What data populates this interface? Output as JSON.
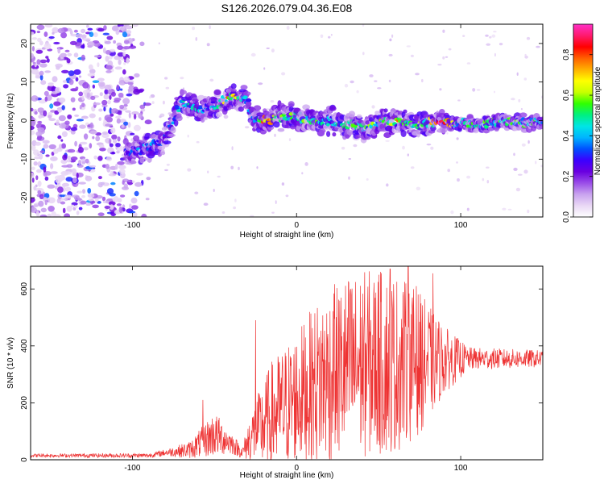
{
  "title": "S126.2026.079.04.36.E08",
  "chart_data": [
    {
      "type": "heatmap",
      "panel": "spectrogram",
      "xlabel": "Height of straight line (km)",
      "ylabel": "Frequency (Hz)",
      "xlim": [
        -162,
        150
      ],
      "ylim": [
        -25,
        25
      ],
      "xticks": [
        -100,
        0,
        100
      ],
      "yticks": [
        -20,
        -10,
        0,
        10,
        20
      ],
      "colorbar": {
        "label": "Normalized spectral amplitude",
        "range": [
          0,
          0.95
        ],
        "ticks": [
          0.0,
          0.2,
          0.4,
          0.6,
          0.8
        ],
        "colors": [
          "#ffffff",
          "#e9d8f5",
          "#c9a3ef",
          "#9a4de8",
          "#6a00e0",
          "#3b00ff",
          "#0050ff",
          "#00b4ff",
          "#00e5e5",
          "#00f080",
          "#30ff00",
          "#c8ff00",
          "#ffff00",
          "#ffb000",
          "#ff6000",
          "#ff0000",
          "#ff1a6e",
          "#ff30c8"
        ]
      },
      "ridge": {
        "description": "dominant frequency track",
        "points": [
          {
            "x": -100,
            "freq": -8,
            "amp": 0.35
          },
          {
            "x": -90,
            "freq": -7,
            "amp": 0.4
          },
          {
            "x": -80,
            "freq": -5,
            "amp": 0.3
          },
          {
            "x": -70,
            "freq": 5,
            "amp": 0.45
          },
          {
            "x": -60,
            "freq": 3,
            "amp": 0.5
          },
          {
            "x": -50,
            "freq": 4,
            "amp": 0.4
          },
          {
            "x": -40,
            "freq": 6,
            "amp": 0.8
          },
          {
            "x": -30,
            "freq": 5,
            "amp": 0.4
          },
          {
            "x": -25,
            "freq": 0,
            "amp": 0.45
          },
          {
            "x": -20,
            "freq": 0,
            "amp": 0.8
          },
          {
            "x": -10,
            "freq": 1,
            "amp": 0.55
          },
          {
            "x": 0,
            "freq": 1,
            "amp": 0.6
          },
          {
            "x": 10,
            "freq": 0,
            "amp": 0.55
          },
          {
            "x": 20,
            "freq": 0,
            "amp": 0.45
          },
          {
            "x": 30,
            "freq": -1,
            "amp": 0.5
          },
          {
            "x": 40,
            "freq": -2,
            "amp": 0.55
          },
          {
            "x": 50,
            "freq": -1,
            "amp": 0.6
          },
          {
            "x": 60,
            "freq": 0,
            "amp": 0.75
          },
          {
            "x": 70,
            "freq": -1,
            "amp": 0.6
          },
          {
            "x": 80,
            "freq": -0.5,
            "amp": 0.6
          },
          {
            "x": 88,
            "freq": -0.5,
            "amp": 0.95
          },
          {
            "x": 100,
            "freq": -0.5,
            "amp": 0.5
          },
          {
            "x": 120,
            "freq": -0.5,
            "amp": 0.55
          },
          {
            "x": 150,
            "freq": -0.5,
            "amp": 0.5
          }
        ]
      }
    },
    {
      "type": "line",
      "panel": "snr",
      "xlabel": "Height of straight line (km)",
      "ylabel": "SNR (10 * v/v)",
      "xlim": [
        -162,
        150
      ],
      "ylim": [
        0,
        680
      ],
      "xticks": [
        -100,
        0,
        100
      ],
      "yticks": [
        0,
        200,
        400,
        600
      ],
      "series": [
        {
          "name": "SNR",
          "color": "#ee3333",
          "envelope": [
            {
              "x": -162,
              "base": 15,
              "spread": 6
            },
            {
              "x": -90,
              "base": 15,
              "spread": 8
            },
            {
              "x": -80,
              "base": 25,
              "spread": 12
            },
            {
              "x": -65,
              "base": 35,
              "spread": 30
            },
            {
              "x": -50,
              "base": 90,
              "spread": 80
            },
            {
              "x": -40,
              "base": 60,
              "spread": 40
            },
            {
              "x": -33,
              "base": 25,
              "spread": 20
            },
            {
              "x": -28,
              "base": 80,
              "spread": 90
            },
            {
              "x": -15,
              "base": 150,
              "spread": 200
            },
            {
              "x": 0,
              "base": 220,
              "spread": 230
            },
            {
              "x": 15,
              "base": 280,
              "spread": 300
            },
            {
              "x": 30,
              "base": 320,
              "spread": 330
            },
            {
              "x": 45,
              "base": 340,
              "spread": 330
            },
            {
              "x": 60,
              "base": 340,
              "spread": 320
            },
            {
              "x": 75,
              "base": 340,
              "spread": 250
            },
            {
              "x": 90,
              "base": 350,
              "spread": 120
            },
            {
              "x": 105,
              "base": 355,
              "spread": 40
            },
            {
              "x": 150,
              "base": 355,
              "spread": 30
            }
          ],
          "peaks": [
            {
              "x": -57,
              "y": 210
            },
            {
              "x": -25,
              "y": 490
            },
            {
              "x": 23,
              "y": 495
            },
            {
              "x": 33,
              "y": 600
            },
            {
              "x": 50,
              "y": 650
            },
            {
              "x": 57,
              "y": 670
            },
            {
              "x": 68,
              "y": 680
            },
            {
              "x": 73,
              "y": 610
            },
            {
              "x": 83,
              "y": 655
            }
          ]
        }
      ]
    }
  ]
}
